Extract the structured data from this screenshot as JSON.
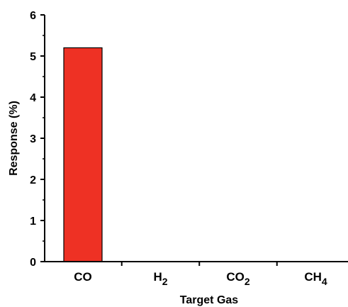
{
  "chart_data": {
    "type": "bar",
    "categories": [
      "CO",
      "H2",
      "CO2",
      "CH4"
    ],
    "category_labels": [
      {
        "base": "CO",
        "sub": ""
      },
      {
        "base": "H",
        "sub": "2"
      },
      {
        "base": "CO",
        "sub": "2"
      },
      {
        "base": "CH",
        "sub": "4"
      }
    ],
    "values": [
      5.2,
      0,
      0,
      0
    ],
    "xlabel": "Target Gas",
    "ylabel": "Response (%)",
    "ylim": [
      0,
      6
    ],
    "yticks": [
      "0",
      "1",
      "2",
      "3",
      "4",
      "5",
      "6"
    ],
    "bar_color": "#ee3124",
    "bar_edge_color": "#000000",
    "grid": false
  }
}
